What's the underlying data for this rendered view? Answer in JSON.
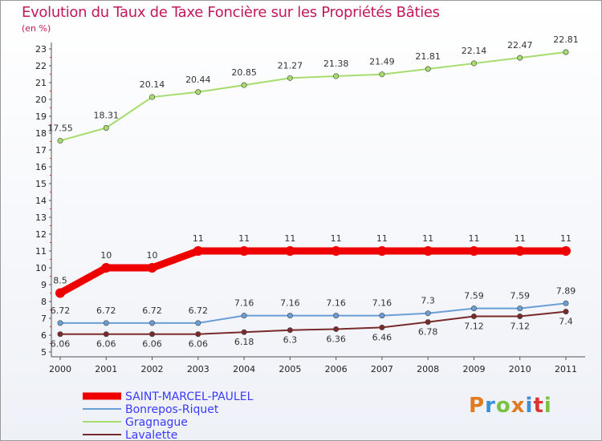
{
  "title": "Evolution du Taux de Taxe Foncière sur les Propriétés Bâties",
  "unit_label": "(en %)",
  "logo": {
    "text": "Proxiti",
    "colors": [
      "#e07b1f",
      "#3a8fd8",
      "#7cc242",
      "#e07b1f",
      "#3a8fd8",
      "#d33",
      "#7cc242"
    ]
  },
  "chart_data": {
    "type": "line",
    "categories": [
      "2000",
      "2001",
      "2002",
      "2003",
      "2004",
      "2005",
      "2006",
      "2007",
      "2008",
      "2009",
      "2010",
      "2011"
    ],
    "ylim": [
      5,
      23
    ],
    "yticks": [
      "5",
      "6",
      "7",
      "8",
      "9",
      "10",
      "11",
      "12",
      "13",
      "14",
      "15",
      "16",
      "17",
      "18",
      "19",
      "20",
      "21",
      "22",
      "23"
    ],
    "grid": false,
    "legend_position": "bottom-left",
    "series": [
      {
        "name": "Lavalette",
        "color": "#7a2a2a",
        "values": [
          6.06,
          6.06,
          6.06,
          6.06,
          6.18,
          6.3,
          6.36,
          6.46,
          6.78,
          7.12,
          7.12,
          7.4
        ],
        "labels": [
          "6.06",
          "6.06",
          "6.06",
          "6.06",
          "6.18",
          "6.3",
          "6.36",
          "6.46",
          "6.78",
          "7.12",
          "7.12",
          "7.4"
        ]
      },
      {
        "name": "Bonrepos-Riquet",
        "color": "#6a9ed6",
        "values": [
          6.72,
          6.72,
          6.72,
          6.72,
          7.16,
          7.16,
          7.16,
          7.16,
          7.3,
          7.59,
          7.59,
          7.89
        ],
        "labels": [
          "6.72",
          "6.72",
          "6.72",
          "6.72",
          "7.16",
          "7.16",
          "7.16",
          "7.16",
          "7.3",
          "7.59",
          "7.59",
          "7.89"
        ]
      },
      {
        "name": "Gragnague",
        "color": "#a6dc6e",
        "values": [
          17.55,
          18.31,
          20.14,
          20.44,
          20.85,
          21.27,
          21.38,
          21.49,
          21.81,
          22.14,
          22.47,
          22.81
        ],
        "labels": [
          "17.55",
          "18.31",
          "20.14",
          "20.44",
          "20.85",
          "21.27",
          "21.38",
          "21.49",
          "21.81",
          "22.14",
          "22.47",
          "22.81"
        ]
      },
      {
        "name": "SAINT-MARCEL-PAULEL",
        "color": "#ee0000",
        "values": [
          8.5,
          10,
          10,
          11,
          11,
          11,
          11,
          11,
          11,
          11,
          11,
          11
        ],
        "labels": [
          "8.5",
          "10",
          "10",
          "11",
          "11",
          "11",
          "11",
          "11",
          "11",
          "11",
          "11",
          "11"
        ]
      }
    ],
    "legend": [
      "SAINT-MARCEL-PAULEL",
      "Bonrepos-Riquet",
      "Gragnague",
      "Lavalette"
    ]
  }
}
